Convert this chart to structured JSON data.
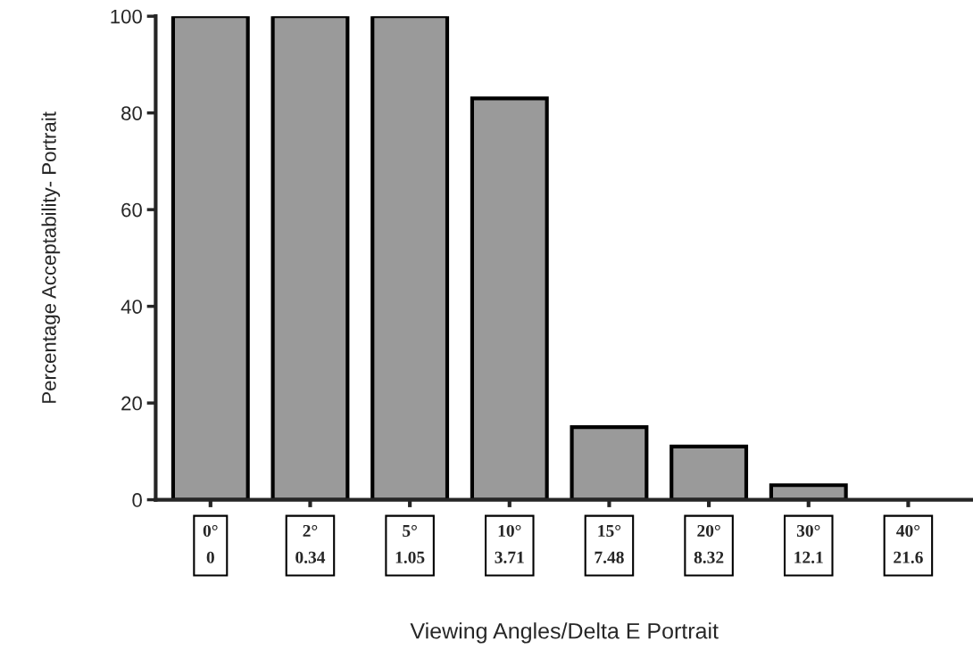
{
  "chart_data": {
    "type": "bar",
    "xlabel": "Viewing Angles/Delta E Portrait",
    "ylabel": "Percentage Acceptability- Portrait",
    "categories": [
      "0°\n0",
      "2°\n0.34",
      "5°\n1.05",
      "10°\n3.71",
      "15°\n7.48",
      "20°\n8.32",
      "30°\n12.1",
      "40°\n21.6"
    ],
    "values": [
      100,
      100,
      100,
      83,
      15,
      11,
      3,
      0
    ],
    "color": "#9a9a9a",
    "ylim": [
      0,
      100
    ],
    "yticks": [
      0,
      20,
      40,
      60,
      80,
      100
    ],
    "grid": false
  }
}
